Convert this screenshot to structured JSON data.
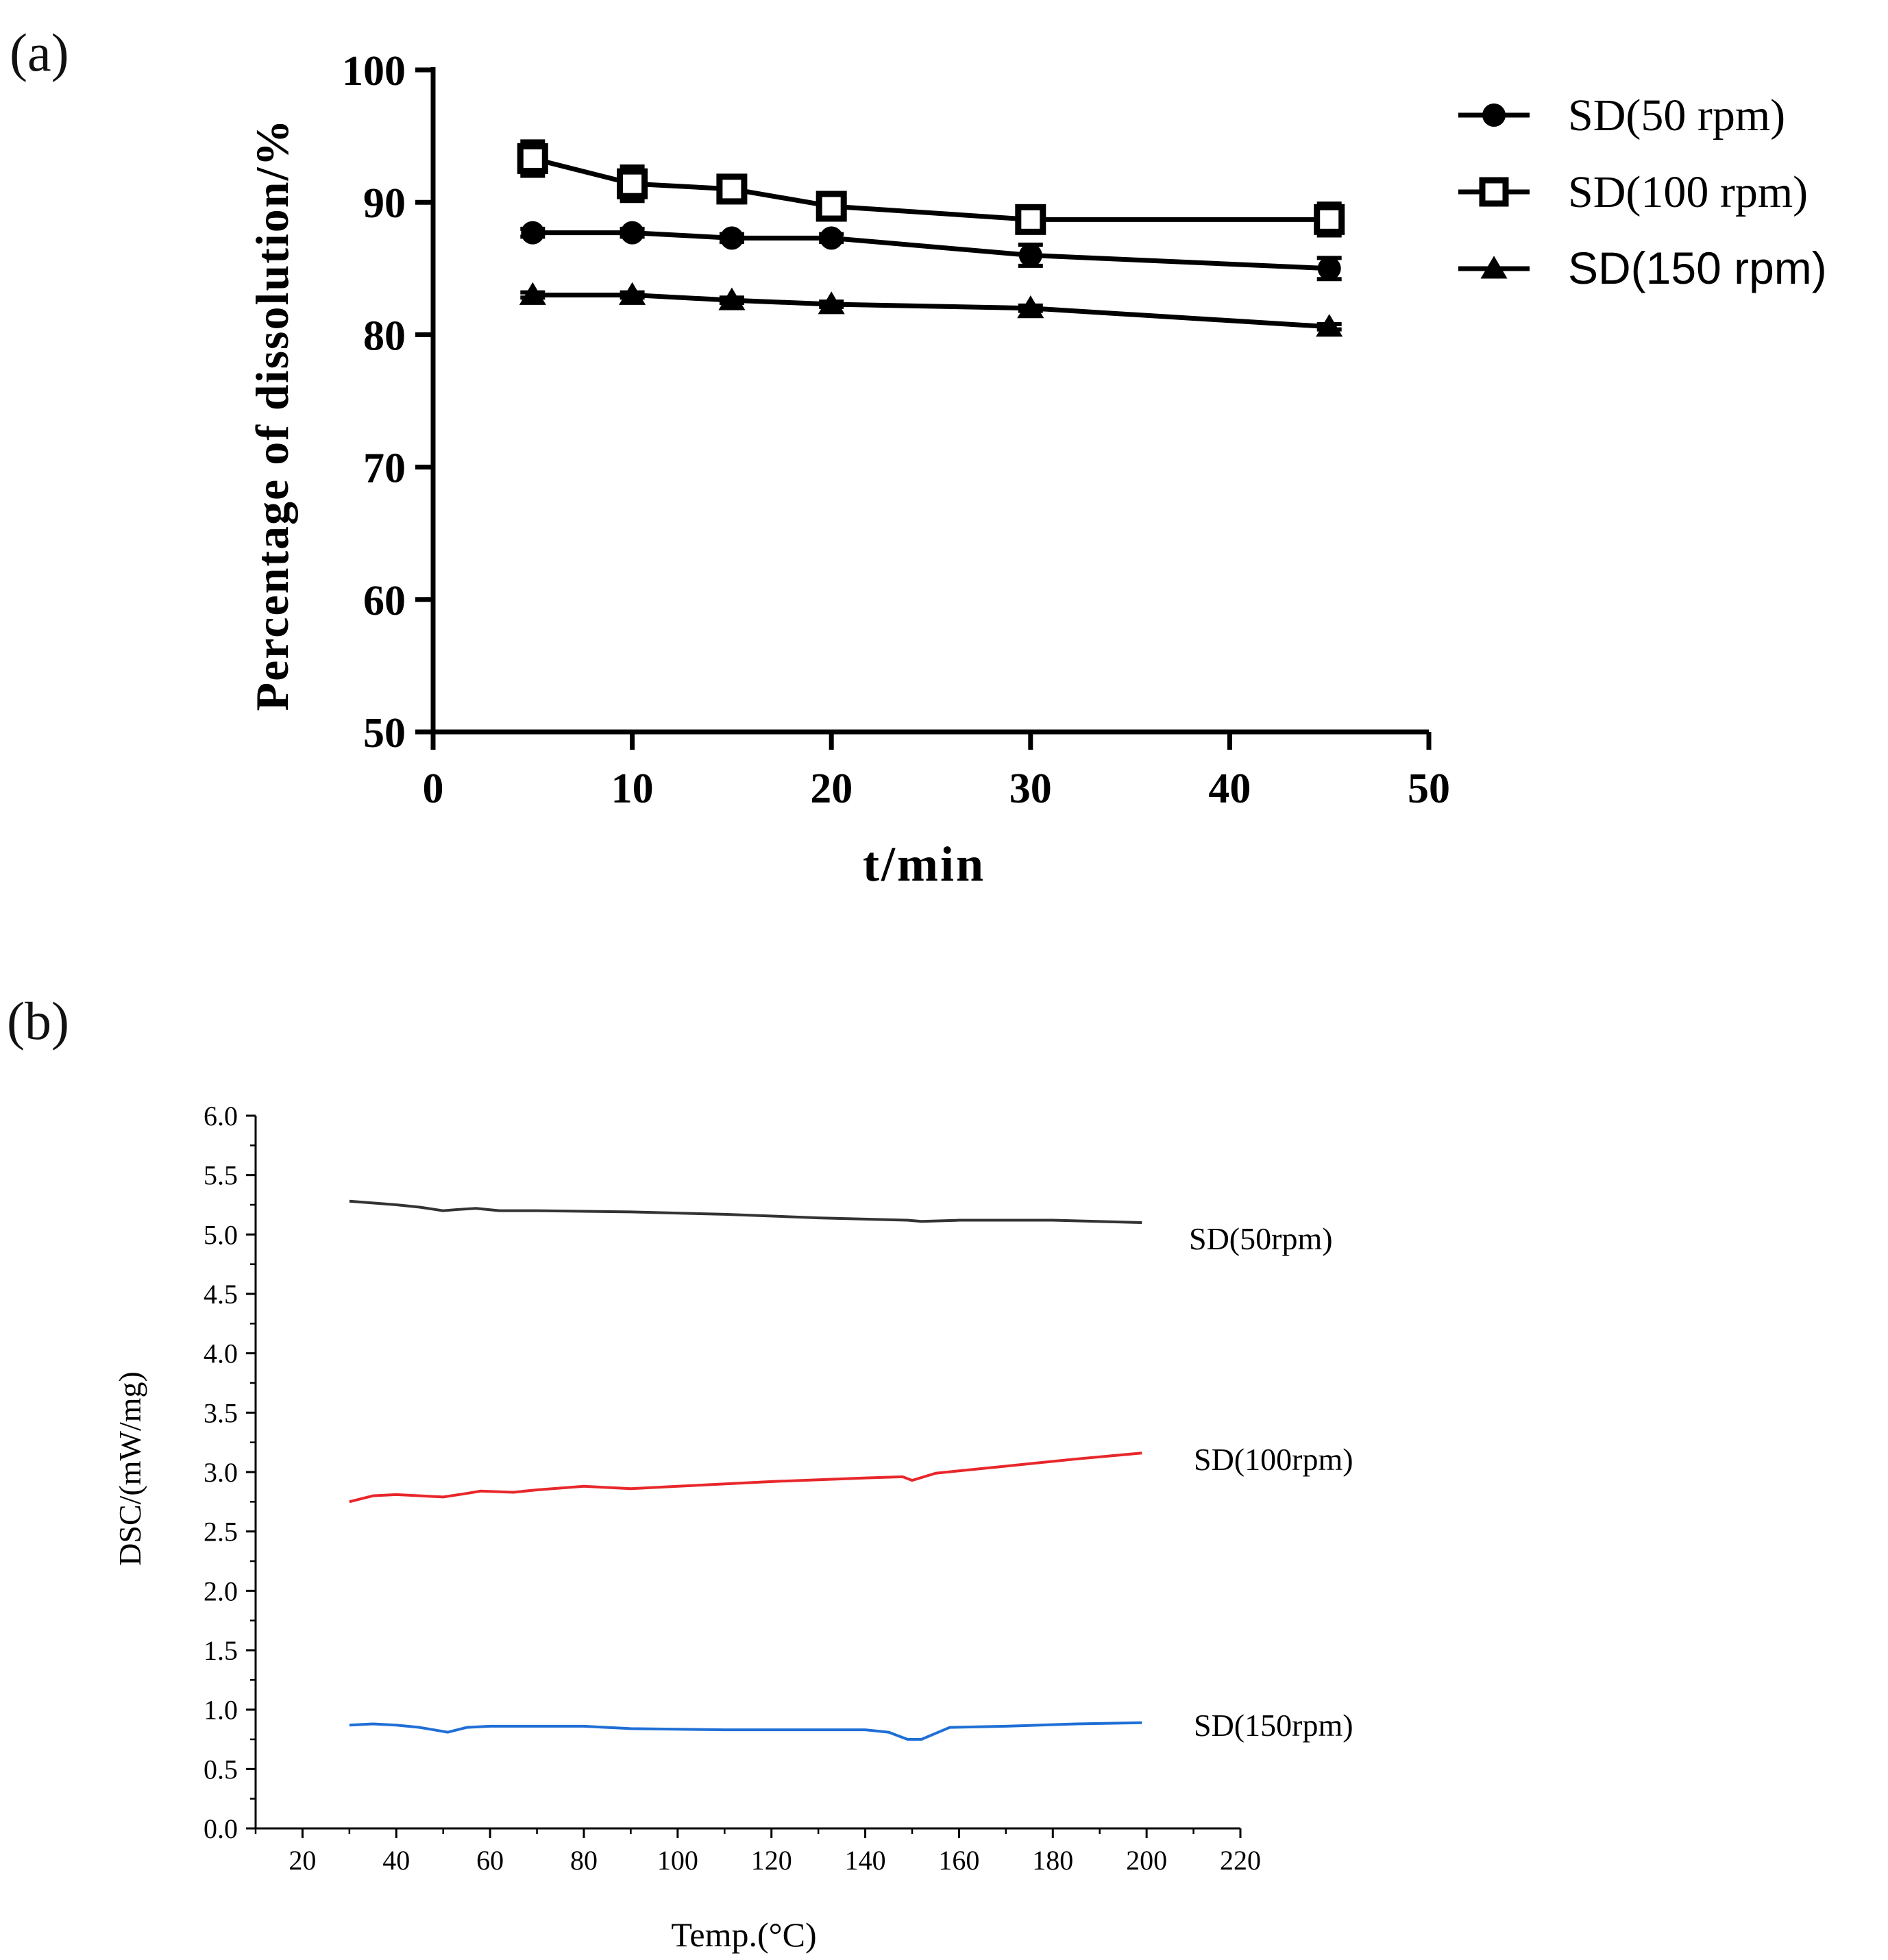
{
  "panels": {
    "a_label": "(a)",
    "b_label": "(b)"
  },
  "chart_data": [
    {
      "type": "line",
      "panel": "(a)",
      "title": "",
      "xlabel": "t/min",
      "ylabel": "Percentage of dissolution/%",
      "xlim": [
        0,
        50
      ],
      "ylim": [
        50,
        100
      ],
      "x_ticks": [
        "0",
        "10",
        "20",
        "30",
        "40",
        "50"
      ],
      "y_ticks": [
        "50",
        "60",
        "70",
        "80",
        "90",
        "100"
      ],
      "x": [
        5,
        10,
        15,
        20,
        30,
        45
      ],
      "legend_position": "right",
      "series": [
        {
          "name": "SD(50 rpm)",
          "marker": "circle",
          "values": [
            87.7,
            87.7,
            87.3,
            87.3,
            86.0,
            85.0
          ],
          "error": [
            0.3,
            0.3,
            0.3,
            0.3,
            0.8,
            0.8
          ]
        },
        {
          "name": "SD(100 rpm)",
          "marker": "square-open",
          "values": [
            93.3,
            91.4,
            91.0,
            89.7,
            88.7,
            88.7
          ],
          "error": [
            1.3,
            1.3,
            1.0,
            0.6,
            0.6,
            1.2
          ]
        },
        {
          "name": "SD(150 rpm)",
          "marker": "triangle",
          "values": [
            83.0,
            83.0,
            82.6,
            82.3,
            82.0,
            80.6
          ],
          "error": [
            0.2,
            0.2,
            0.2,
            0.2,
            0.2,
            0.2
          ]
        }
      ]
    },
    {
      "type": "line",
      "panel": "(b)",
      "title": "",
      "xlabel": "Temp.(°C)",
      "ylabel": "DSC/(mW/mg)",
      "xlim": [
        10,
        220
      ],
      "ylim": [
        0,
        6
      ],
      "x_ticks": [
        "20",
        "40",
        "60",
        "80",
        "100",
        "120",
        "140",
        "160",
        "180",
        "200",
        "220"
      ],
      "y_ticks": [
        "0.0",
        "0.5",
        "1.0",
        "1.5",
        "2.0",
        "2.5",
        "3.0",
        "3.5",
        "4.0",
        "4.5",
        "5.0",
        "5.5",
        "6.0"
      ],
      "series": [
        {
          "name": "SD(50rpm)",
          "color": "#333333",
          "x": [
            30,
            40,
            45,
            50,
            53,
            57,
            62,
            70,
            90,
            110,
            130,
            149,
            152,
            160,
            180,
            199
          ],
          "values": [
            5.28,
            5.25,
            5.23,
            5.2,
            5.21,
            5.22,
            5.2,
            5.2,
            5.19,
            5.17,
            5.14,
            5.12,
            5.11,
            5.12,
            5.12,
            5.1
          ]
        },
        {
          "name": "SD(100rpm)",
          "color": "#e8272b",
          "x": [
            30,
            35,
            40,
            45,
            50,
            55,
            58,
            65,
            70,
            80,
            90,
            100,
            120,
            140,
            148,
            150,
            155,
            170,
            185,
            199
          ],
          "values": [
            2.75,
            2.8,
            2.81,
            2.8,
            2.79,
            2.82,
            2.84,
            2.83,
            2.85,
            2.88,
            2.86,
            2.88,
            2.92,
            2.95,
            2.96,
            2.93,
            2.99,
            3.05,
            3.11,
            3.16
          ]
        },
        {
          "name": "SD(150rpm)",
          "color": "#1f6fd6",
          "x": [
            30,
            35,
            40,
            45,
            51,
            55,
            60,
            70,
            80,
            90,
            110,
            130,
            140,
            145,
            149,
            152,
            155,
            158,
            170,
            185,
            199
          ],
          "values": [
            0.87,
            0.88,
            0.87,
            0.85,
            0.81,
            0.85,
            0.86,
            0.86,
            0.86,
            0.84,
            0.83,
            0.83,
            0.83,
            0.81,
            0.75,
            0.75,
            0.8,
            0.85,
            0.86,
            0.88,
            0.89
          ]
        }
      ]
    }
  ]
}
